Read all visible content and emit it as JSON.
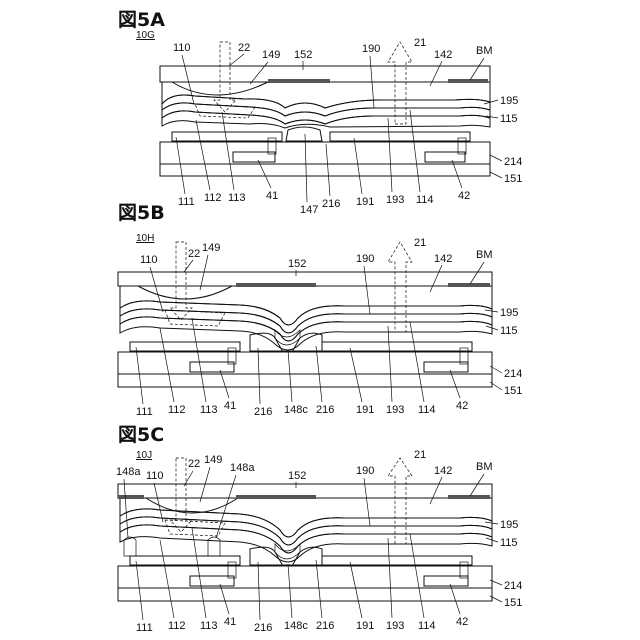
{
  "figures": [
    {
      "title": "図5A",
      "sublabel": "10G",
      "labels": [
        "110",
        "22",
        "149",
        "152",
        "190",
        "21",
        "142",
        "BM",
        "195",
        "115",
        "214",
        "151",
        "111",
        "112",
        "113",
        "41",
        "147",
        "216",
        "191",
        "193",
        "114",
        "42"
      ]
    },
    {
      "title": "図5B",
      "sublabel": "10H",
      "labels": [
        "22",
        "149",
        "21",
        "110",
        "152",
        "190",
        "142",
        "BM",
        "195",
        "115",
        "214",
        "151",
        "111",
        "112",
        "113",
        "41",
        "216",
        "148c",
        "216",
        "191",
        "193",
        "114",
        "42"
      ]
    },
    {
      "title": "図5C",
      "sublabel": "10J",
      "labels": [
        "22",
        "149",
        "148a",
        "148a",
        "110",
        "152",
        "190",
        "21",
        "142",
        "BM",
        "195",
        "115",
        "214",
        "151",
        "111",
        "112",
        "113",
        "41",
        "216",
        "148c",
        "216",
        "191",
        "193",
        "114",
        "42"
      ]
    }
  ]
}
